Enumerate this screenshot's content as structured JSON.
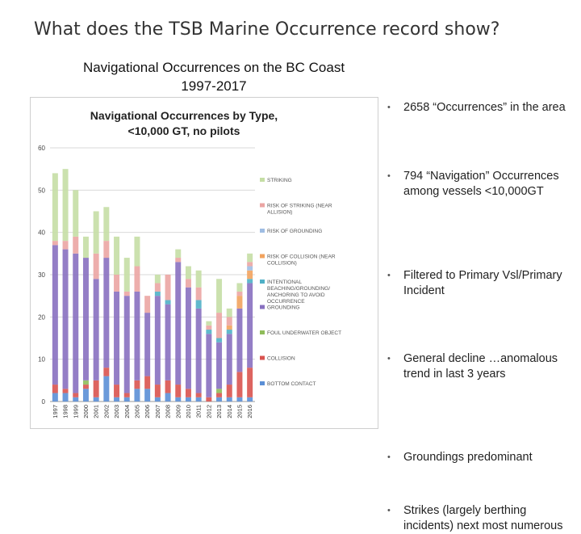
{
  "slide": {
    "title": "What does the TSB Marine Occurrence record show?",
    "subtitle_line1": "Navigational Occurrences on the BC Coast",
    "subtitle_line2": "1997-2017"
  },
  "bullets": [
    "2658 “Occurrences” in the area",
    "794 “Navigation” Occurrences among vessels <10,000GT",
    "Filtered to Primary Vsl/Primary Incident",
    "General decline …anomalous trend in last 3 years",
    "Groundings predominant",
    "Strikes (largely berthing incidents) next most numerous"
  ],
  "chart_data": {
    "type": "bar",
    "stacked": true,
    "title_line1": "Navigational Occurrences by Type,",
    "title_line2": "<10,000 GT, no pilots",
    "categories": [
      "1997",
      "1998",
      "1999",
      "2000",
      "2001",
      "2002",
      "2003",
      "2004",
      "2005",
      "2006",
      "2007",
      "2008",
      "2009",
      "2010",
      "2011",
      "2012",
      "2013",
      "2014",
      "2015",
      "2016"
    ],
    "ylim": [
      0,
      60
    ],
    "yticks": [
      "0",
      "10",
      "20",
      "30",
      "40",
      "50",
      "60"
    ],
    "legend_position": "right",
    "series": [
      {
        "name": "BOTTOM CONTACT",
        "color": "#5b8fd6",
        "values": [
          2,
          2,
          1,
          3,
          1,
          6,
          1,
          1,
          3,
          3,
          1,
          2,
          1,
          1,
          1,
          0,
          1,
          1,
          1,
          1
        ]
      },
      {
        "name": "COLLISION",
        "color": "#d9534f",
        "values": [
          2,
          1,
          1,
          1,
          4,
          2,
          3,
          1,
          2,
          3,
          3,
          3,
          3,
          2,
          1,
          1,
          1,
          3,
          6,
          7
        ]
      },
      {
        "name": "FOUL UNDERWATER OBJECT",
        "color": "#8fbc5a",
        "values": [
          0,
          0,
          0,
          1,
          0,
          0,
          0,
          0,
          0,
          0,
          0,
          0,
          0,
          0,
          0,
          0,
          1,
          0,
          0,
          0
        ]
      },
      {
        "name": "GROUNDING",
        "color": "#8870c0",
        "values": [
          33,
          33,
          33,
          29,
          24,
          26,
          22,
          23,
          21,
          15,
          21,
          18,
          29,
          24,
          20,
          15,
          11,
          12,
          15,
          20
        ]
      },
      {
        "name": "INTENTIONAL BEACHING/GROUNDING/ ANCHORING TO AVOID OCCURRENCE",
        "color": "#4fb0c6",
        "values": [
          0,
          0,
          0,
          0,
          0,
          0,
          0,
          0,
          0,
          0,
          1,
          1,
          0,
          0,
          2,
          1,
          1,
          1,
          0,
          1
        ]
      },
      {
        "name": "RISK OF COLLISION (NEAR COLLISION)",
        "color": "#f2a35e",
        "values": [
          0,
          0,
          0,
          0,
          0,
          0,
          0,
          0,
          0,
          0,
          0,
          0,
          0,
          0,
          0,
          0,
          0,
          1,
          3,
          2
        ]
      },
      {
        "name": "RISK OF GROUNDING",
        "color": "#9fbde3",
        "values": [
          0,
          0,
          0,
          0,
          0,
          0,
          0,
          0,
          0,
          0,
          0,
          0,
          0,
          0,
          0,
          0,
          0,
          0,
          0,
          1
        ]
      },
      {
        "name": "RISK OF STRIKING (NEAR ALLISION)",
        "color": "#eba5a3",
        "values": [
          1,
          2,
          4,
          0,
          6,
          4,
          4,
          1,
          6,
          4,
          2,
          6,
          1,
          2,
          3,
          1,
          6,
          2,
          1,
          1
        ]
      },
      {
        "name": "STRIKING",
        "color": "#c5dea5",
        "values": [
          16,
          17,
          11,
          5,
          10,
          8,
          9,
          8,
          7,
          0,
          2,
          0,
          2,
          3,
          4,
          1,
          8,
          2,
          2,
          2
        ]
      }
    ]
  }
}
